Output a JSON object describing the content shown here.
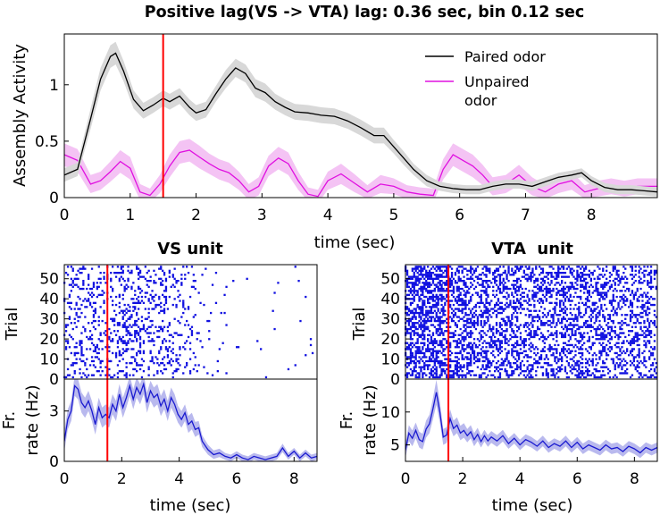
{
  "chart_data": [
    {
      "type": "line",
      "title": "Positive lag(VS -> VTA) lag: 0.36 sec, bin 0.12 sec",
      "xlabel": "time (sec)",
      "ylabel": "Assembly Activity",
      "xlim": [
        0,
        9
      ],
      "ylim": [
        0,
        1.45
      ],
      "xticks": [
        0,
        1,
        2,
        3,
        4,
        5,
        6,
        7,
        8
      ],
      "yticks": [
        0,
        0.5,
        1
      ],
      "ytick_labels": [
        "0",
        "0.5",
        "1"
      ],
      "marker_line_x": 1.5,
      "marker_color": "#ff0000",
      "legend_position": "top-right",
      "series": [
        {
          "name": "Paired odor",
          "color": "#000000",
          "band_color": "#d8d8d8",
          "x": [
            0,
            0.2,
            0.4,
            0.55,
            0.7,
            0.78,
            0.9,
            1.05,
            1.2,
            1.35,
            1.5,
            1.6,
            1.75,
            1.9,
            2.0,
            2.15,
            2.3,
            2.45,
            2.6,
            2.75,
            2.9,
            3.05,
            3.2,
            3.35,
            3.5,
            3.7,
            3.9,
            4.1,
            4.3,
            4.5,
            4.7,
            4.85,
            5.0,
            5.15,
            5.3,
            5.5,
            5.7,
            5.9,
            6.1,
            6.3,
            6.5,
            6.7,
            6.9,
            7.1,
            7.3,
            7.5,
            7.7,
            7.85,
            8.0,
            8.2,
            8.4,
            8.6,
            8.8,
            9.0
          ],
          "values": [
            0.2,
            0.25,
            0.7,
            1.05,
            1.25,
            1.28,
            1.12,
            0.87,
            0.77,
            0.82,
            0.88,
            0.85,
            0.9,
            0.8,
            0.75,
            0.78,
            0.92,
            1.05,
            1.15,
            1.1,
            0.97,
            0.93,
            0.85,
            0.8,
            0.76,
            0.75,
            0.73,
            0.72,
            0.68,
            0.62,
            0.55,
            0.55,
            0.45,
            0.35,
            0.25,
            0.15,
            0.1,
            0.08,
            0.07,
            0.07,
            0.1,
            0.12,
            0.12,
            0.1,
            0.14,
            0.18,
            0.2,
            0.22,
            0.15,
            0.09,
            0.07,
            0.07,
            0.06,
            0.05
          ],
          "errors": [
            0.06,
            0.06,
            0.09,
            0.1,
            0.1,
            0.1,
            0.09,
            0.08,
            0.07,
            0.07,
            0.07,
            0.07,
            0.07,
            0.07,
            0.07,
            0.07,
            0.07,
            0.08,
            0.08,
            0.08,
            0.08,
            0.08,
            0.07,
            0.07,
            0.07,
            0.07,
            0.07,
            0.07,
            0.07,
            0.07,
            0.07,
            0.07,
            0.06,
            0.06,
            0.05,
            0.05,
            0.04,
            0.04,
            0.04,
            0.04,
            0.04,
            0.04,
            0.04,
            0.04,
            0.04,
            0.04,
            0.04,
            0.04,
            0.04,
            0.04,
            0.04,
            0.04,
            0.04,
            0.04
          ]
        },
        {
          "name": "Unpaired odor",
          "color": "#e010e0",
          "band_color": "#f4c3f4",
          "x": [
            0,
            0.2,
            0.4,
            0.55,
            0.7,
            0.85,
            1.0,
            1.15,
            1.3,
            1.45,
            1.6,
            1.75,
            1.9,
            2.05,
            2.2,
            2.35,
            2.5,
            2.65,
            2.8,
            2.95,
            3.1,
            3.25,
            3.4,
            3.55,
            3.7,
            3.85,
            4.0,
            4.2,
            4.4,
            4.6,
            4.8,
            5.0,
            5.2,
            5.4,
            5.6,
            5.75,
            5.9,
            6.05,
            6.2,
            6.35,
            6.5,
            6.7,
            6.9,
            7.1,
            7.3,
            7.5,
            7.7,
            7.9,
            8.1,
            8.3,
            8.5,
            8.7,
            9.0
          ],
          "values": [
            0.38,
            0.33,
            0.12,
            0.15,
            0.23,
            0.32,
            0.26,
            0.05,
            0.02,
            0.12,
            0.28,
            0.4,
            0.42,
            0.36,
            0.3,
            0.25,
            0.22,
            0.15,
            0.05,
            0.1,
            0.28,
            0.35,
            0.3,
            0.15,
            0.03,
            0.01,
            0.15,
            0.21,
            0.13,
            0.05,
            0.12,
            0.1,
            0.05,
            0.03,
            0.02,
            0.25,
            0.38,
            0.33,
            0.28,
            0.2,
            0.1,
            0.12,
            0.2,
            0.1,
            0.05,
            0.12,
            0.15,
            0.05,
            0.08,
            0.1,
            0.08,
            0.1,
            0.1
          ],
          "errors": [
            0.1,
            0.1,
            0.08,
            0.08,
            0.09,
            0.1,
            0.1,
            0.07,
            0.06,
            0.08,
            0.1,
            0.1,
            0.1,
            0.1,
            0.09,
            0.09,
            0.09,
            0.08,
            0.07,
            0.08,
            0.09,
            0.1,
            0.1,
            0.08,
            0.06,
            0.06,
            0.08,
            0.09,
            0.08,
            0.06,
            0.08,
            0.07,
            0.06,
            0.06,
            0.06,
            0.09,
            0.1,
            0.1,
            0.1,
            0.09,
            0.08,
            0.08,
            0.09,
            0.08,
            0.06,
            0.08,
            0.08,
            0.06,
            0.07,
            0.07,
            0.07,
            0.07,
            0.07
          ]
        }
      ]
    },
    {
      "type": "scatter",
      "title": "VS unit",
      "ylabel": "Trial",
      "xlim": [
        0,
        8.8
      ],
      "ylim": [
        0,
        57
      ],
      "yticks": [
        0,
        10,
        20,
        30,
        40,
        50
      ],
      "trials": 56,
      "point_color": "#1010e0",
      "marker_line_x": 1.5,
      "rate_profile": {
        "x": [
          0,
          0.5,
          1,
          1.5,
          2,
          2.5,
          3,
          3.5,
          4,
          4.5,
          5,
          6,
          7,
          8,
          8.8
        ],
        "density": [
          0.13,
          0.2,
          0.18,
          0.16,
          0.22,
          0.24,
          0.2,
          0.17,
          0.13,
          0.09,
          0.03,
          0.008,
          0.008,
          0.012,
          0.01
        ]
      }
    },
    {
      "type": "line",
      "ylabel": "Fr. rate (Hz)",
      "xlabel": "time (sec)",
      "xlim": [
        0,
        8.8
      ],
      "ylim": [
        0,
        4.9
      ],
      "xticks": [
        0,
        2,
        4,
        6,
        8
      ],
      "yticks": [
        0,
        3
      ],
      "marker_line_x": 1.5,
      "series": [
        {
          "color": "#1a1ad0",
          "band_color": "#b9b9ee",
          "x": [
            0,
            0.12,
            0.24,
            0.36,
            0.48,
            0.6,
            0.72,
            0.84,
            0.96,
            1.08,
            1.2,
            1.32,
            1.44,
            1.56,
            1.68,
            1.8,
            1.92,
            2.04,
            2.16,
            2.28,
            2.4,
            2.52,
            2.64,
            2.76,
            2.88,
            3.0,
            3.12,
            3.24,
            3.36,
            3.48,
            3.6,
            3.72,
            3.84,
            3.96,
            4.08,
            4.2,
            4.32,
            4.44,
            4.56,
            4.68,
            4.8,
            5.0,
            5.2,
            5.4,
            5.6,
            5.8,
            6.0,
            6.2,
            6.4,
            6.6,
            6.8,
            7.0,
            7.2,
            7.4,
            7.6,
            7.8,
            8.0,
            8.2,
            8.4,
            8.6,
            8.8
          ],
          "values": [
            1.2,
            2.5,
            3.0,
            4.5,
            4.3,
            3.5,
            3.2,
            3.6,
            3.0,
            2.2,
            3.2,
            2.6,
            2.8,
            2.6,
            3.4,
            3.0,
            4.0,
            3.2,
            3.8,
            4.5,
            3.7,
            4.4,
            4.0,
            4.6,
            3.5,
            4.2,
            3.8,
            4.0,
            3.3,
            3.7,
            3.0,
            3.8,
            3.4,
            2.8,
            2.5,
            2.9,
            2.2,
            2.4,
            1.9,
            2.0,
            1.2,
            0.7,
            0.4,
            0.5,
            0.3,
            0.2,
            0.4,
            0.2,
            0.1,
            0.3,
            0.2,
            0.1,
            0.2,
            0.3,
            0.8,
            0.3,
            0.6,
            0.2,
            0.5,
            0.2,
            0.3
          ],
          "errors": [
            0.6,
            0.6,
            0.6,
            0.6,
            0.6,
            0.6,
            0.6,
            0.6,
            0.6,
            0.6,
            0.6,
            0.6,
            0.6,
            0.6,
            0.6,
            0.6,
            0.6,
            0.6,
            0.6,
            0.6,
            0.6,
            0.6,
            0.6,
            0.6,
            0.6,
            0.6,
            0.6,
            0.6,
            0.6,
            0.6,
            0.6,
            0.6,
            0.6,
            0.5,
            0.5,
            0.5,
            0.5,
            0.5,
            0.45,
            0.4,
            0.35,
            0.3,
            0.25,
            0.25,
            0.2,
            0.2,
            0.2,
            0.2,
            0.2,
            0.2,
            0.2,
            0.2,
            0.2,
            0.2,
            0.25,
            0.2,
            0.2,
            0.2,
            0.2,
            0.2,
            0.2
          ]
        }
      ]
    },
    {
      "type": "scatter",
      "title": "VTA  unit",
      "ylabel": "Trial",
      "xlim": [
        0,
        8.8
      ],
      "ylim": [
        0,
        57
      ],
      "yticks": [
        0,
        10,
        20,
        30,
        40,
        50
      ],
      "trials": 56,
      "point_color": "#1010e0",
      "marker_line_x": 1.5,
      "rate_profile": {
        "x": [
          0,
          0.5,
          1,
          1.5,
          2,
          3,
          4,
          5,
          6,
          7,
          8,
          8.8
        ],
        "density": [
          0.45,
          0.5,
          0.55,
          0.45,
          0.4,
          0.38,
          0.36,
          0.36,
          0.35,
          0.34,
          0.33,
          0.33
        ]
      }
    },
    {
      "type": "line",
      "ylabel": "Fr. rate (Hz)",
      "xlabel": "time (sec)",
      "xlim": [
        0,
        8.8
      ],
      "ylim": [
        2.5,
        15
      ],
      "xticks": [
        0,
        2,
        4,
        6,
        8
      ],
      "yticks": [
        5,
        10
      ],
      "marker_line_x": 1.5,
      "series": [
        {
          "color": "#1a1ad0",
          "band_color": "#b9b9ee",
          "x": [
            0,
            0.12,
            0.24,
            0.36,
            0.48,
            0.6,
            0.72,
            0.84,
            0.96,
            1.08,
            1.2,
            1.32,
            1.44,
            1.56,
            1.68,
            1.8,
            1.92,
            2.04,
            2.16,
            2.28,
            2.4,
            2.52,
            2.64,
            2.76,
            2.88,
            3.0,
            3.2,
            3.4,
            3.6,
            3.8,
            4.0,
            4.2,
            4.4,
            4.6,
            4.8,
            5.0,
            5.2,
            5.4,
            5.6,
            5.8,
            6.0,
            6.2,
            6.4,
            6.6,
            6.8,
            7.0,
            7.2,
            7.4,
            7.6,
            7.8,
            8.0,
            8.2,
            8.4,
            8.6,
            8.8
          ],
          "values": [
            4.2,
            6.8,
            6.0,
            7.2,
            5.8,
            5.5,
            7.4,
            8.2,
            10.5,
            13.0,
            10.0,
            6.2,
            6.5,
            9.0,
            7.5,
            8.0,
            6.8,
            7.2,
            6.4,
            7.0,
            5.8,
            6.6,
            5.5,
            6.4,
            5.6,
            6.2,
            5.6,
            6.4,
            5.2,
            6.0,
            5.0,
            5.8,
            5.4,
            4.8,
            5.6,
            4.6,
            5.2,
            4.8,
            5.6,
            4.6,
            5.4,
            4.4,
            5.0,
            4.6,
            4.2,
            5.0,
            4.4,
            4.6,
            4.0,
            4.8,
            4.4,
            3.8,
            4.6,
            4.2,
            4.6
          ],
          "errors": [
            1.2,
            1.2,
            1.2,
            1.2,
            1.2,
            1.2,
            1.3,
            1.4,
            1.6,
            1.9,
            1.6,
            1.2,
            1.2,
            1.4,
            1.2,
            1.2,
            1.1,
            1.1,
            1.0,
            1.0,
            1.0,
            1.0,
            0.9,
            0.9,
            0.9,
            0.9,
            0.9,
            0.9,
            0.8,
            0.8,
            0.8,
            0.8,
            0.8,
            0.8,
            0.8,
            0.8,
            0.8,
            0.8,
            0.8,
            0.8,
            0.8,
            0.8,
            0.8,
            0.8,
            0.8,
            0.8,
            0.8,
            0.8,
            0.8,
            0.8,
            0.8,
            0.8,
            0.8,
            0.8,
            0.8
          ]
        }
      ]
    }
  ]
}
